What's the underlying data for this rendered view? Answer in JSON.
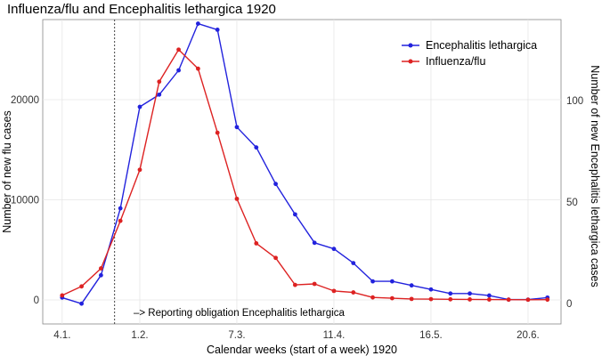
{
  "chart_data": {
    "type": "line",
    "title": "Influenza/flu and Encephalitis lethargica 1920",
    "xlabel": "Calendar weeks (start of a week) 1920",
    "ylabel_left": "Number of new flu cases",
    "ylabel_right": "Number of new Encephalitis lethargica cases",
    "x_ticks": [
      {
        "week": 1,
        "label": "4.1."
      },
      {
        "week": 5,
        "label": "1.2."
      },
      {
        "week": 10,
        "label": "7.3."
      },
      {
        "week": 15,
        "label": "11.4."
      },
      {
        "week": 20,
        "label": "16.5."
      },
      {
        "week": 25,
        "label": "20.6."
      }
    ],
    "xlim": [
      0,
      26.7
    ],
    "ylim_left": [
      -2400,
      28000
    ],
    "ylim_right": [
      -10,
      140
    ],
    "y_ticks_left": [
      0,
      10000,
      20000
    ],
    "y_ticks_right": [
      0,
      50,
      100
    ],
    "vline_week": 3.7,
    "annotation": "–> Reporting obligation Encephalitis lethargica",
    "legend_position": "top-right",
    "series": [
      {
        "name": "Encephalitis lethargica",
        "axis": "right",
        "color": "#2222dd",
        "x": [
          1,
          2,
          3,
          4,
          5,
          6,
          7,
          8,
          9,
          10,
          11,
          12,
          13,
          14,
          15,
          16,
          17,
          18,
          19,
          20,
          21,
          22,
          23,
          24,
          25,
          26
        ],
        "values": [
          3,
          0,
          14,
          47,
          97,
          103,
          115,
          138,
          135,
          87,
          77,
          59,
          44,
          30,
          27,
          20,
          11,
          11,
          9,
          7,
          5,
          5,
          4,
          2,
          2,
          3
        ]
      },
      {
        "name": "Influenza/flu",
        "axis": "left",
        "color": "#dd2222",
        "x": [
          1,
          2,
          3,
          4,
          5,
          6,
          7,
          8,
          9,
          10,
          11,
          12,
          13,
          14,
          15,
          16,
          17,
          18,
          19,
          20,
          21,
          22,
          23,
          24,
          25,
          26
        ],
        "values": [
          450,
          1350,
          3150,
          7900,
          13000,
          21800,
          25000,
          23100,
          16700,
          10100,
          5650,
          4200,
          1500,
          1600,
          900,
          750,
          250,
          170,
          100,
          80,
          60,
          50,
          40,
          30,
          20,
          30
        ]
      }
    ]
  }
}
